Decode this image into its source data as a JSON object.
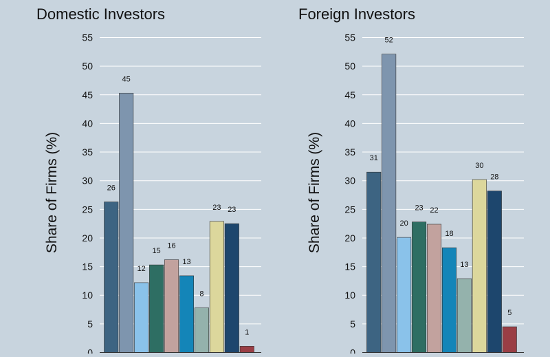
{
  "chart_data": [
    {
      "type": "bar",
      "title": "Domestic Investors",
      "ylabel": "Share of Firms (%)",
      "ylim": [
        0,
        55
      ],
      "yticks": [
        0,
        5,
        10,
        15,
        20,
        25,
        30,
        35,
        40,
        45,
        50,
        55
      ],
      "grid": true,
      "values": [
        26,
        45,
        12,
        15,
        16,
        13,
        8,
        23,
        23,
        1
      ],
      "value_labels": [
        "26",
        "45",
        "12",
        "15",
        "16",
        "13",
        "8",
        "23",
        "23",
        "1"
      ],
      "heights": [
        26.3,
        45.3,
        12.2,
        15.3,
        16.2,
        13.4,
        7.8,
        22.9,
        22.5,
        1.1
      ],
      "colors": [
        "#3d6482",
        "#7e95ae",
        "#8ac2ea",
        "#2e6e63",
        "#c2a29e",
        "#1485b8",
        "#94b2ac",
        "#dcd79c",
        "#1d466d",
        "#9a3e45"
      ]
    },
    {
      "type": "bar",
      "title": "Foreign Investors",
      "ylabel": "Share of Firms (%)",
      "ylim": [
        0,
        55
      ],
      "yticks": [
        0,
        5,
        10,
        15,
        20,
        25,
        30,
        35,
        40,
        45,
        50,
        55
      ],
      "grid": true,
      "values": [
        31,
        52,
        20,
        23,
        22,
        18,
        13,
        30,
        28,
        5
      ],
      "value_labels": [
        "31",
        "52",
        "20",
        "23",
        "22",
        "18",
        "13",
        "30",
        "28",
        "5"
      ],
      "heights": [
        31.5,
        52.1,
        20.1,
        22.8,
        22.4,
        18.3,
        12.9,
        30.2,
        28.2,
        4.5
      ],
      "colors": [
        "#3d6482",
        "#7e95ae",
        "#8ac2ea",
        "#2e6e63",
        "#c2a29e",
        "#1485b8",
        "#94b2ac",
        "#dcd79c",
        "#1d466d",
        "#9a3e45"
      ]
    }
  ]
}
